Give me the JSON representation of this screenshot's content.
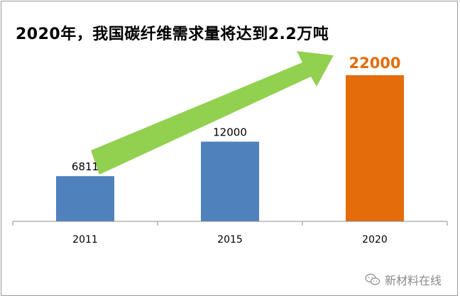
{
  "chart_data": {
    "type": "bar",
    "title": "2020年，我国碳纤维需求量将达到2.2万吨",
    "categories": [
      "2011",
      "2015",
      "2020"
    ],
    "values": [
      6811,
      12000,
      22000
    ],
    "data_labels": [
      "6811",
      "12000",
      "22000"
    ],
    "ylim": [
      0,
      22000
    ],
    "grid": false,
    "legend": "none",
    "colors": [
      "#4f81bd",
      "#4f81bd",
      "#e46c0a"
    ],
    "arrow_color": "#92d050",
    "label_highlight_color": "#e46c0a"
  },
  "watermark": {
    "text": "新材料在线",
    "icon": "wechat-icon"
  }
}
